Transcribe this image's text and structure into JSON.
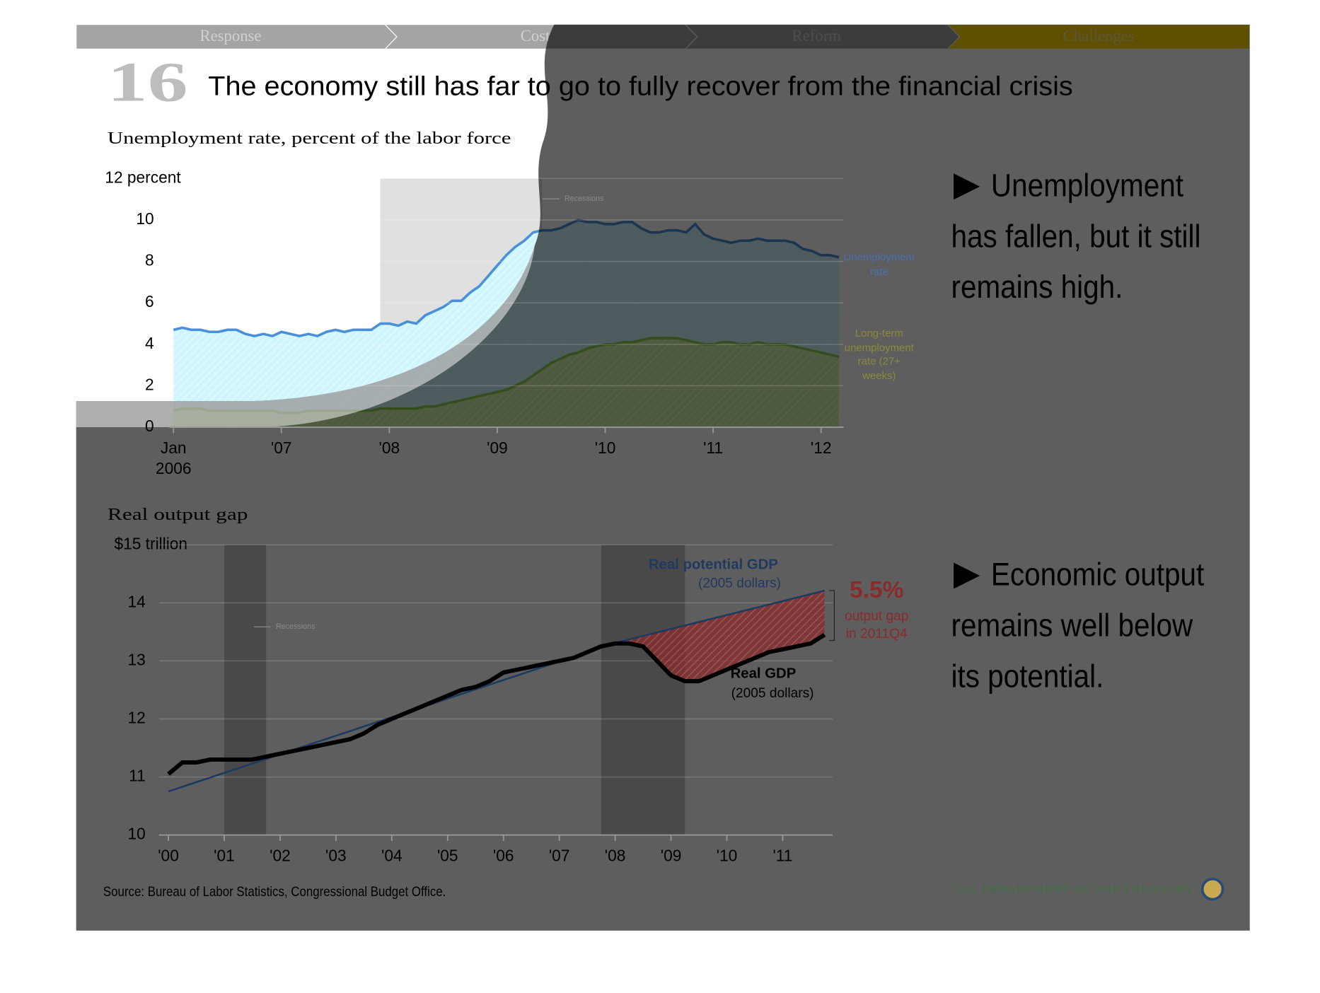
{
  "nav": {
    "tabs": [
      "Response",
      "Cost",
      "Reform",
      "Challenges"
    ],
    "active": 3,
    "color": "#a4a4a4",
    "active_color": "#ffd800"
  },
  "slide": {
    "number": "16",
    "title": "The economy still has far to go to fully recover from the financial crisis",
    "bullets": [
      "Unemployment has fallen, but it still remains high.",
      "Economic output remains well below its potential."
    ],
    "source": "Source: Bureau of Labor Statistics, Congressional Budget Office.",
    "footer": "U.S. DEPARTMENT OF THE TREASURY"
  },
  "chart_data": [
    {
      "type": "area",
      "title": "Unemployment rate, percent of the labor force",
      "categories": [
        "Jan 2006",
        null,
        null,
        null,
        null,
        null,
        null,
        null,
        null,
        null,
        null,
        null,
        "'07",
        null,
        null,
        null,
        null,
        null,
        null,
        null,
        null,
        null,
        null,
        null,
        "'08",
        null,
        null,
        null,
        null,
        null,
        null,
        null,
        null,
        null,
        null,
        null,
        "'09",
        null,
        null,
        null,
        null,
        null,
        null,
        null,
        null,
        null,
        null,
        null,
        "'10",
        null,
        null,
        null,
        null,
        null,
        null,
        null,
        null,
        null,
        null,
        null,
        "'11",
        null,
        null,
        null,
        null,
        null,
        null,
        null,
        null,
        null,
        null,
        null,
        "'12",
        null,
        null
      ],
      "series": [
        {
          "name": "Unemployment rate",
          "color": "#4a90d9",
          "fill": "#cff6ff",
          "label_color": "#4a6fb0",
          "values": [
            4.7,
            4.8,
            4.7,
            4.7,
            4.6,
            4.6,
            4.7,
            4.7,
            4.5,
            4.4,
            4.5,
            4.4,
            4.6,
            4.5,
            4.4,
            4.5,
            4.4,
            4.6,
            4.7,
            4.6,
            4.7,
            4.7,
            4.7,
            5.0,
            5.0,
            4.9,
            5.1,
            5.0,
            5.4,
            5.6,
            5.8,
            6.1,
            6.1,
            6.5,
            6.8,
            7.3,
            7.8,
            8.3,
            8.7,
            9.0,
            9.4,
            9.5,
            9.5,
            9.6,
            9.8,
            10.0,
            9.9,
            9.9,
            9.8,
            9.8,
            9.9,
            9.9,
            9.6,
            9.4,
            9.4,
            9.5,
            9.5,
            9.4,
            9.8,
            9.3,
            9.1,
            9.0,
            8.9,
            9.0,
            9.0,
            9.1,
            9.0,
            9.0,
            9.0,
            8.9,
            8.6,
            8.5,
            8.3,
            8.3,
            8.2
          ]
        },
        {
          "name": "Long-term unemployment rate (27+ weeks)",
          "color": "#8fd14f",
          "fill": "#d4f5a8",
          "label_color": "#8a8a3a",
          "values": [
            0.8,
            0.9,
            0.9,
            0.9,
            0.8,
            0.8,
            0.8,
            0.8,
            0.8,
            0.8,
            0.8,
            0.8,
            0.7,
            0.7,
            0.7,
            0.8,
            0.8,
            0.8,
            0.8,
            0.8,
            0.8,
            0.8,
            0.8,
            0.9,
            0.9,
            0.9,
            0.9,
            0.9,
            1.0,
            1.0,
            1.1,
            1.2,
            1.3,
            1.4,
            1.5,
            1.6,
            1.7,
            1.8,
            2.0,
            2.2,
            2.5,
            2.8,
            3.1,
            3.3,
            3.5,
            3.6,
            3.8,
            3.9,
            4.0,
            4.0,
            4.1,
            4.1,
            4.2,
            4.3,
            4.3,
            4.3,
            4.3,
            4.2,
            4.1,
            4.0,
            4.0,
            4.1,
            4.1,
            4.0,
            4.0,
            4.1,
            4.0,
            4.0,
            4.0,
            3.9,
            3.8,
            3.7,
            3.6,
            3.5,
            3.4
          ]
        }
      ],
      "ylim": [
        0,
        12
      ],
      "yticks": [
        0,
        2,
        4,
        6,
        8,
        10,
        {
          "value": 12,
          "label": "12 percent"
        }
      ],
      "grid": true,
      "recessions": [
        {
          "start": 23,
          "end": 41
        }
      ],
      "recession_label": "Recessions"
    },
    {
      "type": "line",
      "title": "Real output gap",
      "categories": [
        "'00",
        null,
        null,
        null,
        "'01",
        null,
        null,
        null,
        "'02",
        null,
        null,
        null,
        "'03",
        null,
        null,
        null,
        "'04",
        null,
        null,
        null,
        "'05",
        null,
        null,
        null,
        "'06",
        null,
        null,
        null,
        "'07",
        null,
        null,
        null,
        "'08",
        null,
        null,
        null,
        "'09",
        null,
        null,
        null,
        "'10",
        null,
        null,
        null,
        "'11",
        null,
        null,
        null
      ],
      "series": [
        {
          "name": "Real potential GDP",
          "note": "(2005 dollars)",
          "color": "#1f3a60",
          "values": [
            10.75,
            10.83,
            10.91,
            10.99,
            11.07,
            11.15,
            11.23,
            11.31,
            11.39,
            11.47,
            11.55,
            11.63,
            11.71,
            11.79,
            11.87,
            11.95,
            12.03,
            12.11,
            12.19,
            12.27,
            12.35,
            12.43,
            12.51,
            12.59,
            12.67,
            12.75,
            12.83,
            12.91,
            12.99,
            13.07,
            13.15,
            13.23,
            13.31,
            13.37,
            13.43,
            13.49,
            13.55,
            13.61,
            13.67,
            13.73,
            13.79,
            13.85,
            13.91,
            13.97,
            14.03,
            14.09,
            14.15,
            14.21
          ]
        },
        {
          "name": "Real GDP",
          "note": "(2005 dollars)",
          "color": "#000000",
          "values": [
            11.05,
            11.25,
            11.25,
            11.3,
            11.3,
            11.3,
            11.3,
            11.35,
            11.4,
            11.45,
            11.5,
            11.55,
            11.6,
            11.65,
            11.75,
            11.9,
            12.0,
            12.1,
            12.2,
            12.3,
            12.4,
            12.5,
            12.55,
            12.65,
            12.8,
            12.85,
            12.9,
            12.95,
            13.0,
            13.05,
            13.15,
            13.25,
            13.3,
            13.3,
            13.25,
            13.0,
            12.75,
            12.65,
            12.65,
            12.75,
            12.85,
            12.95,
            13.05,
            13.15,
            13.2,
            13.25,
            13.3,
            13.45
          ]
        }
      ],
      "ylim": [
        10,
        15
      ],
      "yticks": [
        10,
        11,
        12,
        13,
        14,
        {
          "value": 15,
          "label": "$15 trillion"
        }
      ],
      "grid": true,
      "recessions": [
        {
          "start": 4,
          "end": 7
        },
        {
          "start": 31,
          "end": 37
        }
      ],
      "recession_label": "Recessions",
      "gap": {
        "from": 32,
        "label": "5.5%",
        "text": [
          "output gap",
          "in 2011Q4"
        ],
        "color": "#8b2a2a"
      }
    }
  ]
}
